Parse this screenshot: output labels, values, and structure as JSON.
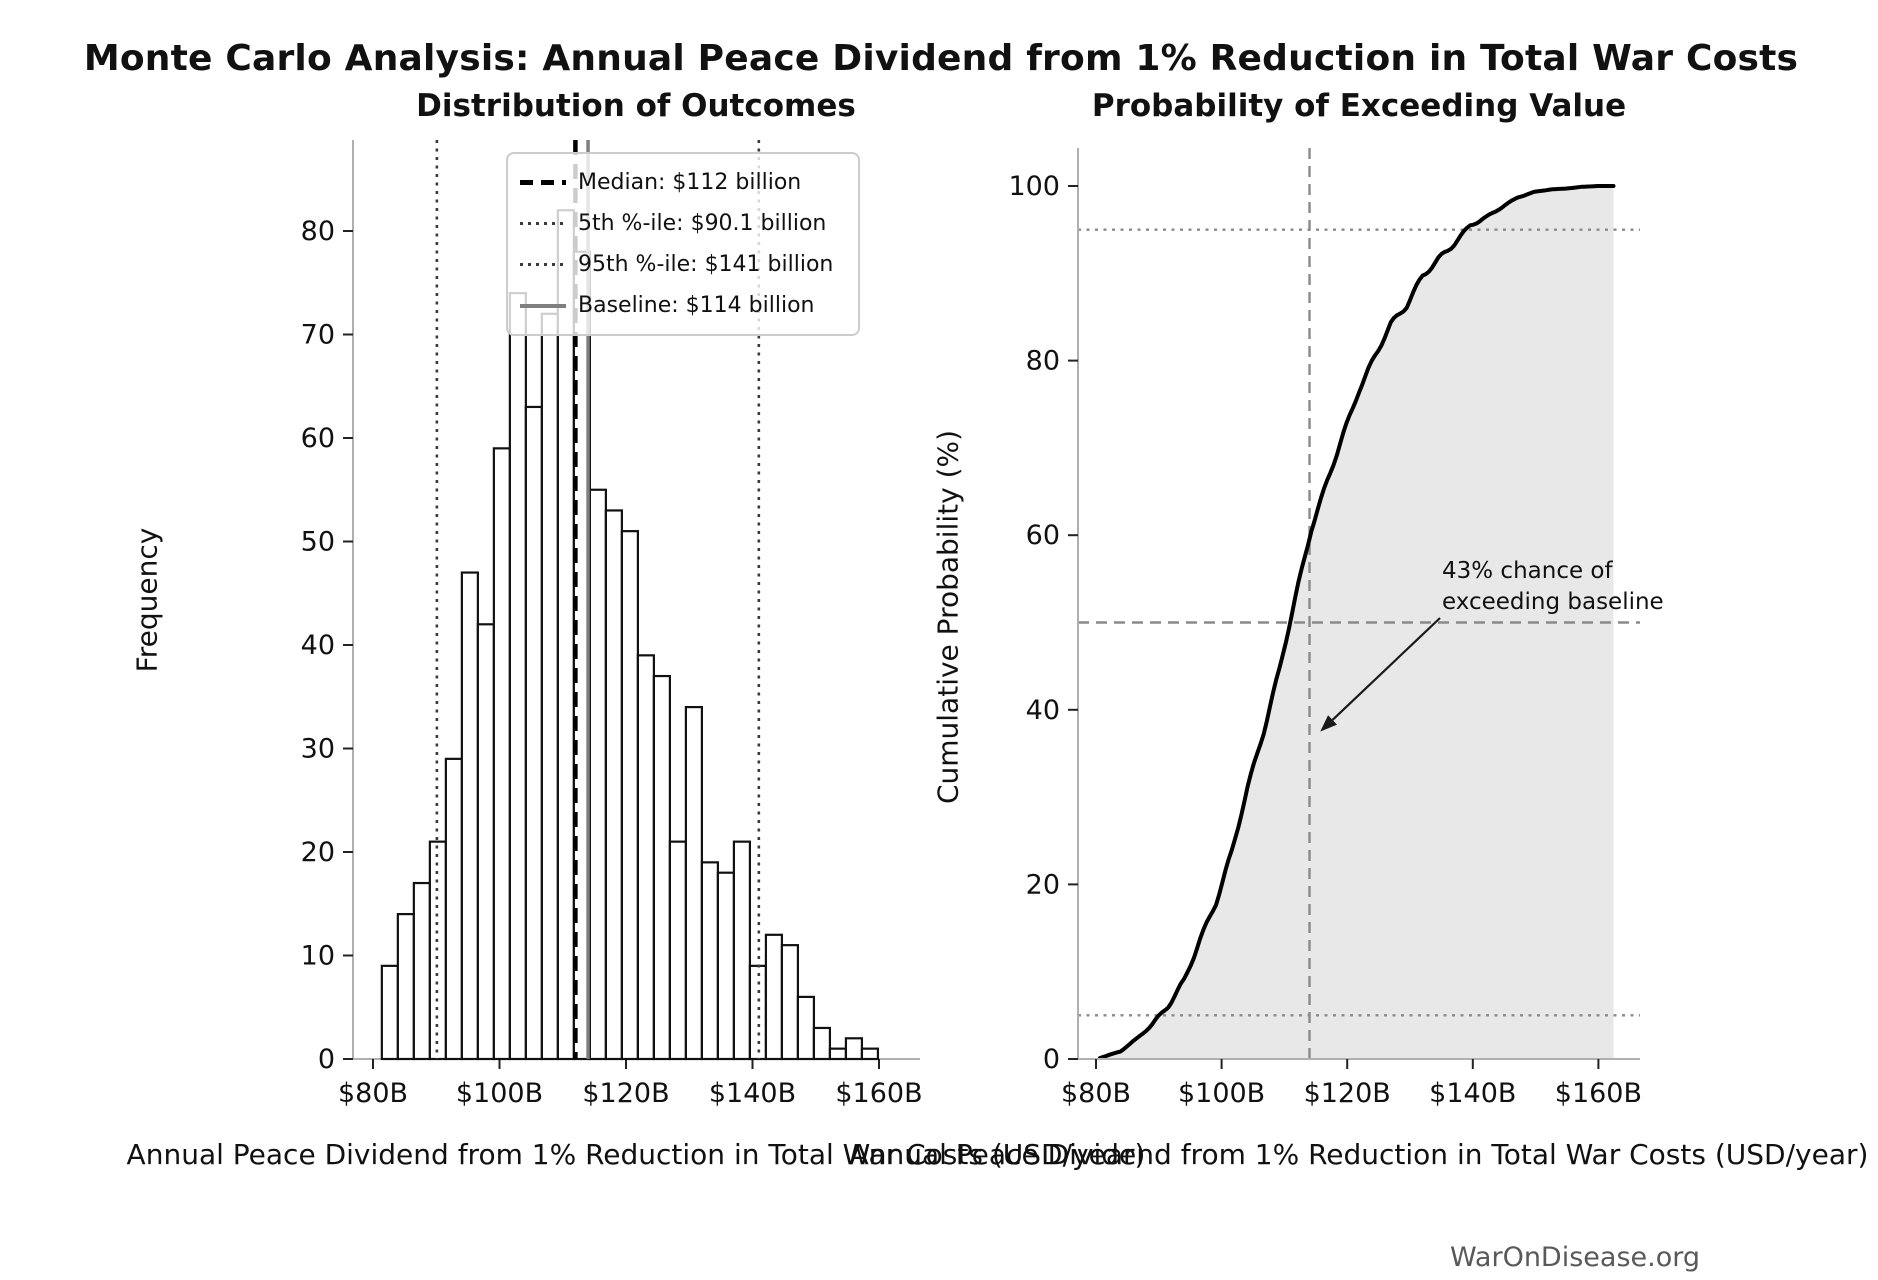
{
  "figure": {
    "suptitle": "Monte Carlo Analysis: Annual Peace Dividend from 1% Reduction in Total War Costs",
    "watermark": "WarOnDisease.org"
  },
  "chart_data": [
    {
      "type": "bar",
      "subtype": "histogram",
      "title": "Distribution of Outcomes",
      "xlabel": "Annual Peace Dividend from 1% Reduction in Total War Costs (USD/year)",
      "ylabel": "Frequency",
      "n_simulations": 1000,
      "bin_start": 81.4,
      "bin_width": 2.53,
      "frequencies": [
        9,
        14,
        17,
        21,
        29,
        47,
        42,
        59,
        74,
        63,
        72,
        82,
        78,
        55,
        53,
        51,
        39,
        37,
        21,
        34,
        19,
        18,
        21,
        9,
        12,
        11,
        6,
        3,
        1,
        2,
        1
      ],
      "xtick_values": [
        80,
        100,
        120,
        140,
        160
      ],
      "xtick_labels": [
        "$80B",
        "$100B",
        "$120B",
        "$140B",
        "$160B"
      ],
      "ytick_values": [
        0,
        10,
        20,
        30,
        40,
        50,
        60,
        70,
        80
      ],
      "xlim": [
        76.8,
        166.5
      ],
      "ylim": [
        0,
        88.5
      ],
      "grid": false,
      "bar_fill": "#ffffff",
      "bar_edge": "#111111",
      "stats": {
        "median_billion": 112,
        "pct5_billion": 90.1,
        "pct95_billion": 141,
        "baseline_billion": 114
      },
      "reference_lines": [
        {
          "id": "median",
          "value": 112,
          "style": "dashed",
          "color": "#000000"
        },
        {
          "id": "pct5",
          "value": 90.1,
          "style": "dotted",
          "color": "#3a3a3a"
        },
        {
          "id": "pct95",
          "value": 141,
          "style": "dotted",
          "color": "#3a3a3a"
        },
        {
          "id": "baseline",
          "value": 114,
          "style": "solid",
          "color": "#7f7f7f"
        }
      ],
      "legend": [
        {
          "label": "Median: $112 billion",
          "style": "dashed-black"
        },
        {
          "label": "5th %-ile: $90.1 billion",
          "style": "dotted-gray"
        },
        {
          "label": "95th %-ile: $141 billion",
          "style": "dotted-gray"
        },
        {
          "label": "Baseline: $114 billion",
          "style": "solid-gray"
        }
      ],
      "legend_position": "upper right"
    },
    {
      "type": "line",
      "subtype": "ecdf",
      "title": "Probability of Exceeding Value",
      "xlabel": "Annual Peace Dividend from 1% Reduction in Total War Costs (USD/year)",
      "ylabel": "Cumulative Probability (%)",
      "x": [
        80.6,
        83.93,
        86.46,
        88.99,
        91.52,
        94.05,
        96.58,
        99.11,
        101.64,
        104.17,
        106.7,
        109.23,
        111.76,
        114.29,
        116.82,
        119.35,
        121.88,
        124.41,
        126.94,
        129.47,
        132.0,
        134.53,
        137.06,
        139.59,
        142.12,
        144.65,
        147.18,
        149.71,
        152.24,
        154.77,
        157.3,
        159.83,
        162.4
      ],
      "y": [
        0.1,
        0.9,
        2.3,
        4.0,
        6.1,
        9.0,
        13.7,
        17.9,
        23.8,
        31.2,
        37.5,
        44.7,
        52.9,
        60.7,
        66.2,
        71.5,
        76.6,
        80.5,
        84.2,
        86.3,
        89.7,
        91.6,
        93.4,
        95.5,
        96.4,
        97.6,
        98.7,
        99.3,
        99.6,
        99.7,
        99.9,
        100.0,
        100.0
      ],
      "fill_under_curve": true,
      "fill_to_x": 162.4,
      "fill_color": "#e8e8e8",
      "line_color": "#000000",
      "xtick_values": [
        80,
        100,
        120,
        140,
        160
      ],
      "xtick_labels": [
        "$80B",
        "$100B",
        "$120B",
        "$140B",
        "$160B"
      ],
      "ytick_values": [
        0,
        20,
        40,
        60,
        80,
        100
      ],
      "xlim": [
        77.1,
        166.6
      ],
      "ylim": [
        0,
        103.5
      ],
      "grid": false,
      "hlines": [
        {
          "value": 95,
          "style": "dotted",
          "color": "#8a8a8a"
        },
        {
          "value": 50,
          "style": "dashed",
          "color": "#8a8a8a"
        },
        {
          "value": 5,
          "style": "dotted",
          "color": "#8a8a8a"
        }
      ],
      "vline": {
        "id": "baseline",
        "value": 114,
        "style": "dashed",
        "color": "#8a8a8a"
      },
      "annotation": {
        "lines": [
          "43% chance of",
          "exceeding baseline"
        ],
        "exceed_probability": "43%",
        "arrow_tip_x": 115.7,
        "arrow_tip_y": 37.5
      }
    }
  ]
}
